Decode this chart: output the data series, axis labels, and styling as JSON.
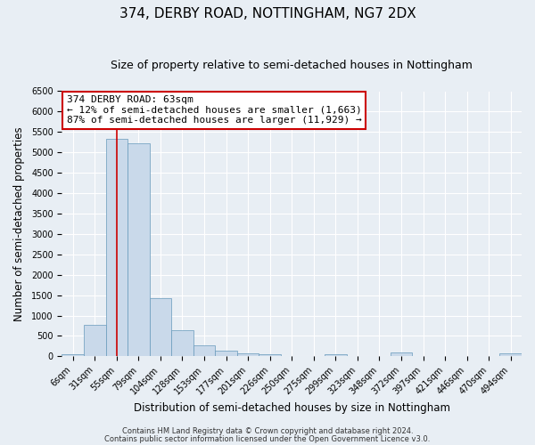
{
  "title": "374, DERBY ROAD, NOTTINGHAM, NG7 2DX",
  "subtitle": "Size of property relative to semi-detached houses in Nottingham",
  "xlabel": "Distribution of semi-detached houses by size in Nottingham",
  "ylabel": "Number of semi-detached properties",
  "bin_labels": [
    "6sqm",
    "31sqm",
    "55sqm",
    "79sqm",
    "104sqm",
    "128sqm",
    "153sqm",
    "177sqm",
    "201sqm",
    "226sqm",
    "250sqm",
    "275sqm",
    "299sqm",
    "323sqm",
    "348sqm",
    "372sqm",
    "397sqm",
    "421sqm",
    "446sqm",
    "470sqm",
    "494sqm"
  ],
  "bin_heights": [
    50,
    780,
    5330,
    5220,
    1420,
    630,
    265,
    130,
    80,
    50,
    0,
    0,
    50,
    0,
    0,
    90,
    0,
    0,
    0,
    0,
    80
  ],
  "bar_color": "#c9d9ea",
  "bar_edge_color": "#6699bb",
  "vline_x": 2,
  "vline_color": "#cc0000",
  "annotation_title": "374 DERBY ROAD: 63sqm",
  "annotation_line1": "← 12% of semi-detached houses are smaller (1,663)",
  "annotation_line2": "87% of semi-detached houses are larger (11,929) →",
  "annotation_box_facecolor": "#ffffff",
  "annotation_box_edgecolor": "#cc0000",
  "ylim": [
    0,
    6500
  ],
  "yticks": [
    0,
    500,
    1000,
    1500,
    2000,
    2500,
    3000,
    3500,
    4000,
    4500,
    5000,
    5500,
    6000,
    6500
  ],
  "footer1": "Contains HM Land Registry data © Crown copyright and database right 2024.",
  "footer2": "Contains public sector information licensed under the Open Government Licence v3.0.",
  "bg_color": "#e8eef4",
  "plot_bg_color": "#e8eef4",
  "grid_color": "#ffffff",
  "title_fontsize": 11,
  "subtitle_fontsize": 9,
  "axis_label_fontsize": 8.5,
  "tick_fontsize": 7,
  "footer_fontsize": 6,
  "annotation_fontsize": 8
}
